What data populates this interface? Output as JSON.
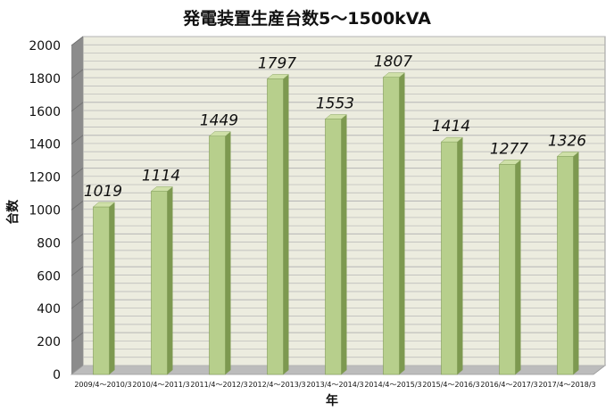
{
  "chart_data": {
    "type": "bar",
    "title": "発電装置生産台数5～1500kVA",
    "xlabel": "年",
    "ylabel": "台数",
    "categories": [
      "2009/4～2010/3",
      "2010/4～2011/3",
      "2011/4～2012/3",
      "2012/4～2013/3",
      "2013/4～2014/3",
      "2014/4～2015/3",
      "2015/4～2016/3",
      "2016/4～2017/3",
      "2017/4～2018/3"
    ],
    "values": [
      1019,
      1114,
      1449,
      1797,
      1553,
      1807,
      1414,
      1277,
      1326
    ],
    "ylim": [
      0,
      2000
    ],
    "yticks": [
      0,
      200,
      400,
      600,
      800,
      1000,
      1200,
      1400,
      1600,
      1800,
      2000
    ],
    "grid": true,
    "legend": "none",
    "colors": {
      "bar_front": "#b7cf8c",
      "bar_side": "#7d9950",
      "bar_top": "#cfe0a8",
      "wall": "#ececdf",
      "floor": "#bcbcbc",
      "grid": "#b5b5b5"
    }
  }
}
